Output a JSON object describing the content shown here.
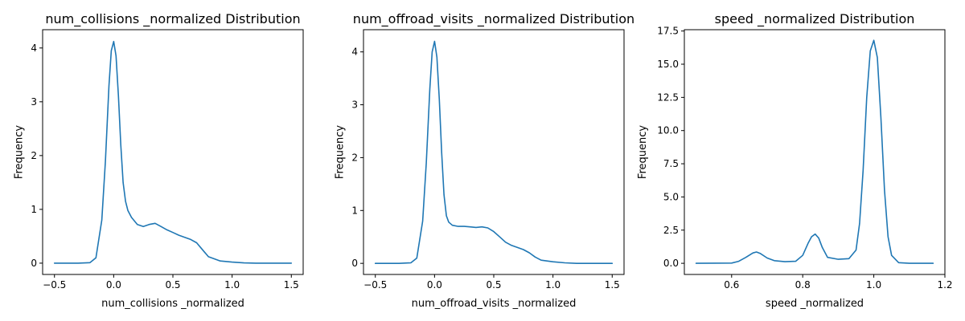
{
  "chart_data": [
    {
      "type": "line",
      "title": "num_collisions _normalized Distribution",
      "xlabel": "num_collisions _normalized",
      "ylabel": "Frequency",
      "xlim": [
        -0.6,
        1.6
      ],
      "ylim": [
        -0.21,
        4.34
      ],
      "x_ticks": [
        -0.5,
        0.0,
        0.5,
        1.0,
        1.5
      ],
      "x_tick_labels": [
        "−0.5",
        "0.0",
        "0.5",
        "1.0",
        "1.5"
      ],
      "y_ticks": [
        0,
        1,
        2,
        3,
        4
      ],
      "y_tick_labels": [
        "0",
        "1",
        "2",
        "3",
        "4"
      ],
      "grid": false,
      "color": "#1f77b4",
      "series": [
        {
          "x": [
            -0.5,
            -0.3,
            -0.2,
            -0.15,
            -0.1,
            -0.07,
            -0.04,
            -0.02,
            0.0,
            0.02,
            0.04,
            0.06,
            0.08,
            0.1,
            0.12,
            0.15,
            0.2,
            0.25,
            0.3,
            0.35,
            0.4,
            0.45,
            0.5,
            0.55,
            0.6,
            0.65,
            0.7,
            0.75,
            0.8,
            0.9,
            1.0,
            1.1,
            1.2,
            1.3,
            1.4,
            1.5
          ],
          "y": [
            0,
            0,
            0.01,
            0.1,
            0.8,
            1.9,
            3.3,
            3.95,
            4.12,
            3.85,
            3.1,
            2.2,
            1.5,
            1.15,
            0.98,
            0.85,
            0.72,
            0.68,
            0.72,
            0.74,
            0.68,
            0.62,
            0.57,
            0.52,
            0.48,
            0.44,
            0.38,
            0.25,
            0.12,
            0.04,
            0.02,
            0.005,
            0,
            0,
            0,
            0
          ]
        }
      ]
    },
    {
      "type": "line",
      "title": "num_offroad_visits _normalized Distribution",
      "xlabel": "num_offroad_visits _normalized",
      "ylabel": "Frequency",
      "xlim": [
        -0.6,
        1.6
      ],
      "ylim": [
        -0.21,
        4.42
      ],
      "x_ticks": [
        -0.5,
        0.0,
        0.5,
        1.0,
        1.5
      ],
      "x_tick_labels": [
        "−0.5",
        "0.0",
        "0.5",
        "1.0",
        "1.5"
      ],
      "y_ticks": [
        0,
        1,
        2,
        3,
        4
      ],
      "y_tick_labels": [
        "0",
        "1",
        "2",
        "3",
        "4"
      ],
      "grid": false,
      "color": "#1f77b4",
      "series": [
        {
          "x": [
            -0.5,
            -0.3,
            -0.2,
            -0.15,
            -0.1,
            -0.07,
            -0.04,
            -0.02,
            0.0,
            0.02,
            0.04,
            0.06,
            0.08,
            0.1,
            0.12,
            0.15,
            0.2,
            0.25,
            0.3,
            0.35,
            0.4,
            0.45,
            0.5,
            0.55,
            0.6,
            0.65,
            0.7,
            0.75,
            0.8,
            0.85,
            0.9,
            1.0,
            1.1,
            1.2,
            1.3,
            1.4,
            1.5
          ],
          "y": [
            0,
            0,
            0.01,
            0.1,
            0.8,
            1.9,
            3.3,
            4.0,
            4.2,
            3.9,
            3.1,
            2.1,
            1.3,
            0.9,
            0.78,
            0.72,
            0.7,
            0.7,
            0.69,
            0.68,
            0.69,
            0.67,
            0.6,
            0.5,
            0.4,
            0.34,
            0.3,
            0.26,
            0.2,
            0.12,
            0.06,
            0.03,
            0.01,
            0,
            0,
            0,
            0
          ]
        }
      ]
    },
    {
      "type": "line",
      "title": "speed _normalized Distribution",
      "xlabel": "speed _normalized",
      "ylabel": "Frequency",
      "xlim": [
        0.467,
        1.2
      ],
      "ylim": [
        -0.84,
        17.6
      ],
      "x_ticks": [
        0.6,
        0.8,
        1.0,
        1.2
      ],
      "x_tick_labels": [
        "0.6",
        "0.8",
        "1.0",
        "1.2"
      ],
      "y_ticks": [
        0.0,
        2.5,
        5.0,
        7.5,
        10.0,
        12.5,
        15.0,
        17.5
      ],
      "y_tick_labels": [
        "0.0",
        "2.5",
        "5.0",
        "7.5",
        "10.0",
        "12.5",
        "15.0",
        "17.5"
      ],
      "grid": false,
      "color": "#1f77b4",
      "series": [
        {
          "x": [
            0.5,
            0.6,
            0.62,
            0.64,
            0.66,
            0.67,
            0.68,
            0.7,
            0.72,
            0.75,
            0.78,
            0.8,
            0.815,
            0.825,
            0.835,
            0.845,
            0.855,
            0.87,
            0.9,
            0.93,
            0.95,
            0.96,
            0.97,
            0.98,
            0.99,
            1.0,
            1.01,
            1.02,
            1.03,
            1.04,
            1.05,
            1.07,
            1.1,
            1.167
          ],
          "y": [
            0,
            0.02,
            0.15,
            0.45,
            0.78,
            0.85,
            0.75,
            0.4,
            0.2,
            0.12,
            0.15,
            0.6,
            1.5,
            2.0,
            2.2,
            1.9,
            1.2,
            0.45,
            0.3,
            0.35,
            1.0,
            3.0,
            7.0,
            12.5,
            16.0,
            16.8,
            15.5,
            11.0,
            5.5,
            2.0,
            0.6,
            0.05,
            0,
            0
          ]
        }
      ]
    }
  ]
}
